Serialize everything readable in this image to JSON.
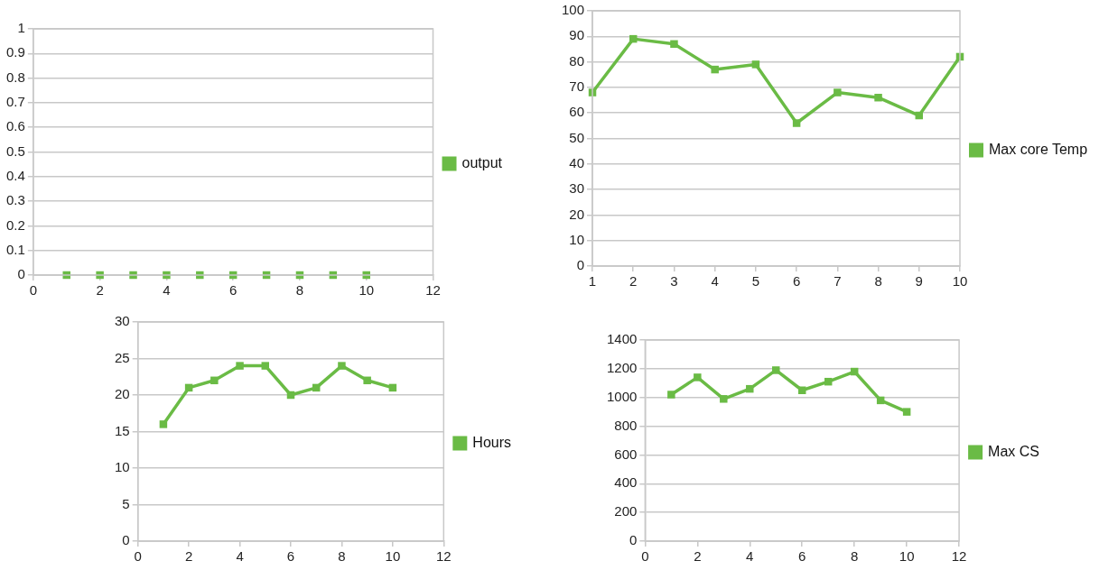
{
  "chart_data": [
    {
      "type": "scatter",
      "x": [
        1,
        2,
        3,
        4,
        5,
        6,
        7,
        8,
        9,
        10
      ],
      "series": [
        {
          "name": "output",
          "color": "#6abb45",
          "values": [
            0,
            0,
            0,
            0,
            0,
            0,
            0,
            0,
            0,
            0
          ]
        }
      ],
      "xlim": [
        0,
        12
      ],
      "xticks": [
        0,
        2,
        4,
        6,
        8,
        10,
        12
      ],
      "ylim": [
        0,
        1
      ],
      "yticks": [
        0,
        0.1,
        0.2,
        0.3,
        0.4,
        0.5,
        0.6,
        0.7,
        0.8,
        0.9,
        1
      ],
      "grid": "y",
      "legend": "right",
      "marker": "square"
    },
    {
      "type": "line",
      "x": [
        1,
        2,
        3,
        4,
        5,
        6,
        7,
        8,
        9,
        10
      ],
      "series": [
        {
          "name": "Max core Temp",
          "color": "#6abb45",
          "values": [
            68,
            89,
            87,
            77,
            79,
            56,
            68,
            66,
            59,
            82
          ]
        }
      ],
      "xlim": [
        1,
        10
      ],
      "xticks": [
        1,
        2,
        3,
        4,
        5,
        6,
        7,
        8,
        9,
        10
      ],
      "ylim": [
        0,
        100
      ],
      "yticks": [
        0,
        10,
        20,
        30,
        40,
        50,
        60,
        70,
        80,
        90,
        100
      ],
      "grid": "y",
      "legend": "right",
      "marker": "square",
      "line_style": "solid"
    },
    {
      "type": "line",
      "x": [
        1,
        2,
        3,
        4,
        5,
        6,
        7,
        8,
        9,
        10
      ],
      "series": [
        {
          "name": "Hours",
          "color": "#6abb45",
          "values": [
            16,
            21,
            22,
            24,
            24,
            20,
            21,
            24,
            22,
            21
          ]
        }
      ],
      "xlim": [
        0,
        12
      ],
      "xticks": [
        0,
        2,
        4,
        6,
        8,
        10,
        12
      ],
      "ylim": [
        0,
        30
      ],
      "yticks": [
        0,
        5,
        10,
        15,
        20,
        25,
        30
      ],
      "grid": "y",
      "legend": "right",
      "marker": "square",
      "line_style": "solid"
    },
    {
      "type": "line",
      "x": [
        1,
        2,
        3,
        4,
        5,
        6,
        7,
        8,
        9,
        10
      ],
      "series": [
        {
          "name": "Max CS",
          "color": "#6abb45",
          "values": [
            1020,
            1140,
            990,
            1060,
            1190,
            1050,
            1110,
            1180,
            980,
            900
          ]
        }
      ],
      "xlim": [
        0,
        12
      ],
      "xticks": [
        0,
        2,
        4,
        6,
        8,
        10,
        12
      ],
      "ylim": [
        0,
        1400
      ],
      "yticks": [
        0,
        200,
        400,
        600,
        800,
        1000,
        1200,
        1400
      ],
      "grid": "y",
      "legend": "right",
      "marker": "square",
      "line_style": "solid"
    }
  ]
}
